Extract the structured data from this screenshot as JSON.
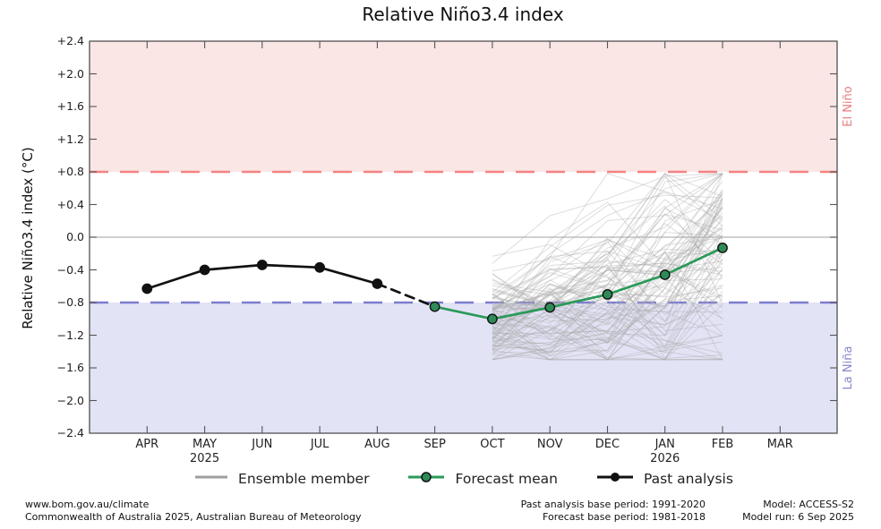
{
  "bands": {
    "el_nino": {
      "label": "El Niño",
      "fill": "#fbe6e6",
      "line": "#f58282",
      "text_color": "#e87d7d"
    },
    "la_nina": {
      "label": "La Niña",
      "fill": "#e3e3f6",
      "line": "#7c7cd0",
      "text_color": "#8787cc"
    }
  },
  "legend": {
    "ensemble": "Ensemble member",
    "forecast": "Forecast mean",
    "past": "Past analysis"
  },
  "footer": {
    "url": "www.bom.gov.au/climate",
    "copyright": "Commonwealth of Australia 2025, Australian Bureau of Meteorology",
    "past_base": "Past analysis base period: 1991-2020",
    "forecast_base": "Forecast base period: 1981-2018",
    "model": "Model: ACCESS-S2",
    "model_run": "Model run: 6 Sep 2025"
  },
  "chart_data": {
    "type": "line",
    "title": "Relative Niño3.4 index",
    "ylabel": "Relative Niño3.4 index (°C)",
    "ylim": [
      -2.4,
      2.4
    ],
    "grid": "zero-line-only",
    "legend_position": "bottom",
    "y_ticks": [
      "+2.4",
      "+2.0",
      "+1.6",
      "+1.2",
      "+0.8",
      "+0.4",
      "0.0",
      "−0.4",
      "−0.8",
      "−1.2",
      "−1.6",
      "−2.0",
      "−2.4"
    ],
    "y_tick_values": [
      2.4,
      2.0,
      1.6,
      1.2,
      0.8,
      0.4,
      0.0,
      -0.4,
      -0.8,
      -1.2,
      -1.6,
      -2.0,
      -2.4
    ],
    "months": [
      "APR",
      "MAY",
      "JUN",
      "JUL",
      "AUG",
      "SEP",
      "OCT",
      "NOV",
      "DEC",
      "JAN",
      "FEB",
      "MAR"
    ],
    "x_year_labels": [
      {
        "text": "2025",
        "month": "MAY"
      },
      {
        "text": "2026",
        "month": "JAN"
      }
    ],
    "thresholds": {
      "el_nino": 0.8,
      "la_nina": -0.8
    },
    "zero_line_color": "#b3b3b3",
    "series": [
      {
        "name": "Past analysis",
        "type": "line+marker",
        "style": "solid",
        "color": "#111111",
        "marker_fill": "#111111",
        "months": [
          "APR",
          "MAY",
          "JUN",
          "JUL",
          "AUG"
        ],
        "values": [
          -0.63,
          -0.4,
          -0.34,
          -0.37,
          -0.57
        ]
      },
      {
        "name": "Past to forecast connector",
        "type": "line",
        "style": "dashed",
        "color": "#111111",
        "months": [
          "AUG",
          "SEP"
        ],
        "values": [
          -0.57,
          -0.85
        ]
      },
      {
        "name": "Forecast mean",
        "type": "line+marker",
        "style": "solid",
        "color": "#2a9a58",
        "marker_fill": "#2e8b57",
        "months": [
          "SEP",
          "OCT",
          "NOV",
          "DEC",
          "JAN",
          "FEB"
        ],
        "values": [
          -0.85,
          -1.0,
          -0.86,
          -0.7,
          -0.46,
          -0.13
        ]
      }
    ],
    "ensemble": {
      "name": "Ensemble member",
      "count": 99,
      "color": "#ababab",
      "opacity": 0.4,
      "months": [
        "OCT",
        "NOV",
        "DEC",
        "JAN",
        "FEB"
      ],
      "mean": [
        -1.0,
        -0.86,
        -0.7,
        -0.46,
        -0.13
      ],
      "spread": [
        0.33,
        0.46,
        0.57,
        0.68,
        0.78
      ],
      "approx_range_oct": [
        -1.45,
        -0.5
      ],
      "approx_range_feb": [
        -1.25,
        0.75
      ],
      "clamp": [
        -1.5,
        0.78
      ],
      "seed": 11
    }
  }
}
